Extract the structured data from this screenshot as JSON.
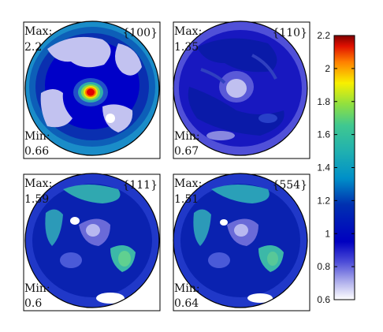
{
  "chart_data": {
    "type": "heatmap",
    "kind": "pole-figure contour",
    "colormap": "jet (white at minimum)",
    "panels": [
      {
        "label": "{100}",
        "max_label": "Max:",
        "max_value": "2.2",
        "min_label": "Min:",
        "min_value": "0.66",
        "max": 2.2,
        "min": 0.66
      },
      {
        "label": "{110}",
        "max_label": "Max:",
        "max_value": "1.35",
        "min_label": "Min:",
        "min_value": "0.67",
        "max": 1.35,
        "min": 0.67
      },
      {
        "label": "{111}",
        "max_label": "Max:",
        "max_value": "1.59",
        "min_label": "Min:",
        "min_value": "0.6",
        "max": 1.59,
        "min": 0.6
      },
      {
        "label": "{554}",
        "max_label": "Max:",
        "max_value": "1.51",
        "min_label": "Min:",
        "min_value": "0.64",
        "max": 1.51,
        "min": 0.64
      }
    ],
    "colorbar": {
      "range": [
        0.6,
        2.2
      ],
      "ticks": [
        {
          "value": 2.2,
          "label": "2.2"
        },
        {
          "value": 2.0,
          "label": "2"
        },
        {
          "value": 1.8,
          "label": "1.8"
        },
        {
          "value": 1.6,
          "label": "1.6"
        },
        {
          "value": 1.4,
          "label": "1.4"
        },
        {
          "value": 1.2,
          "label": "1.2"
        },
        {
          "value": 1.0,
          "label": "1"
        },
        {
          "value": 0.8,
          "label": "0.8"
        },
        {
          "value": 0.6,
          "label": "0.6"
        }
      ]
    }
  }
}
